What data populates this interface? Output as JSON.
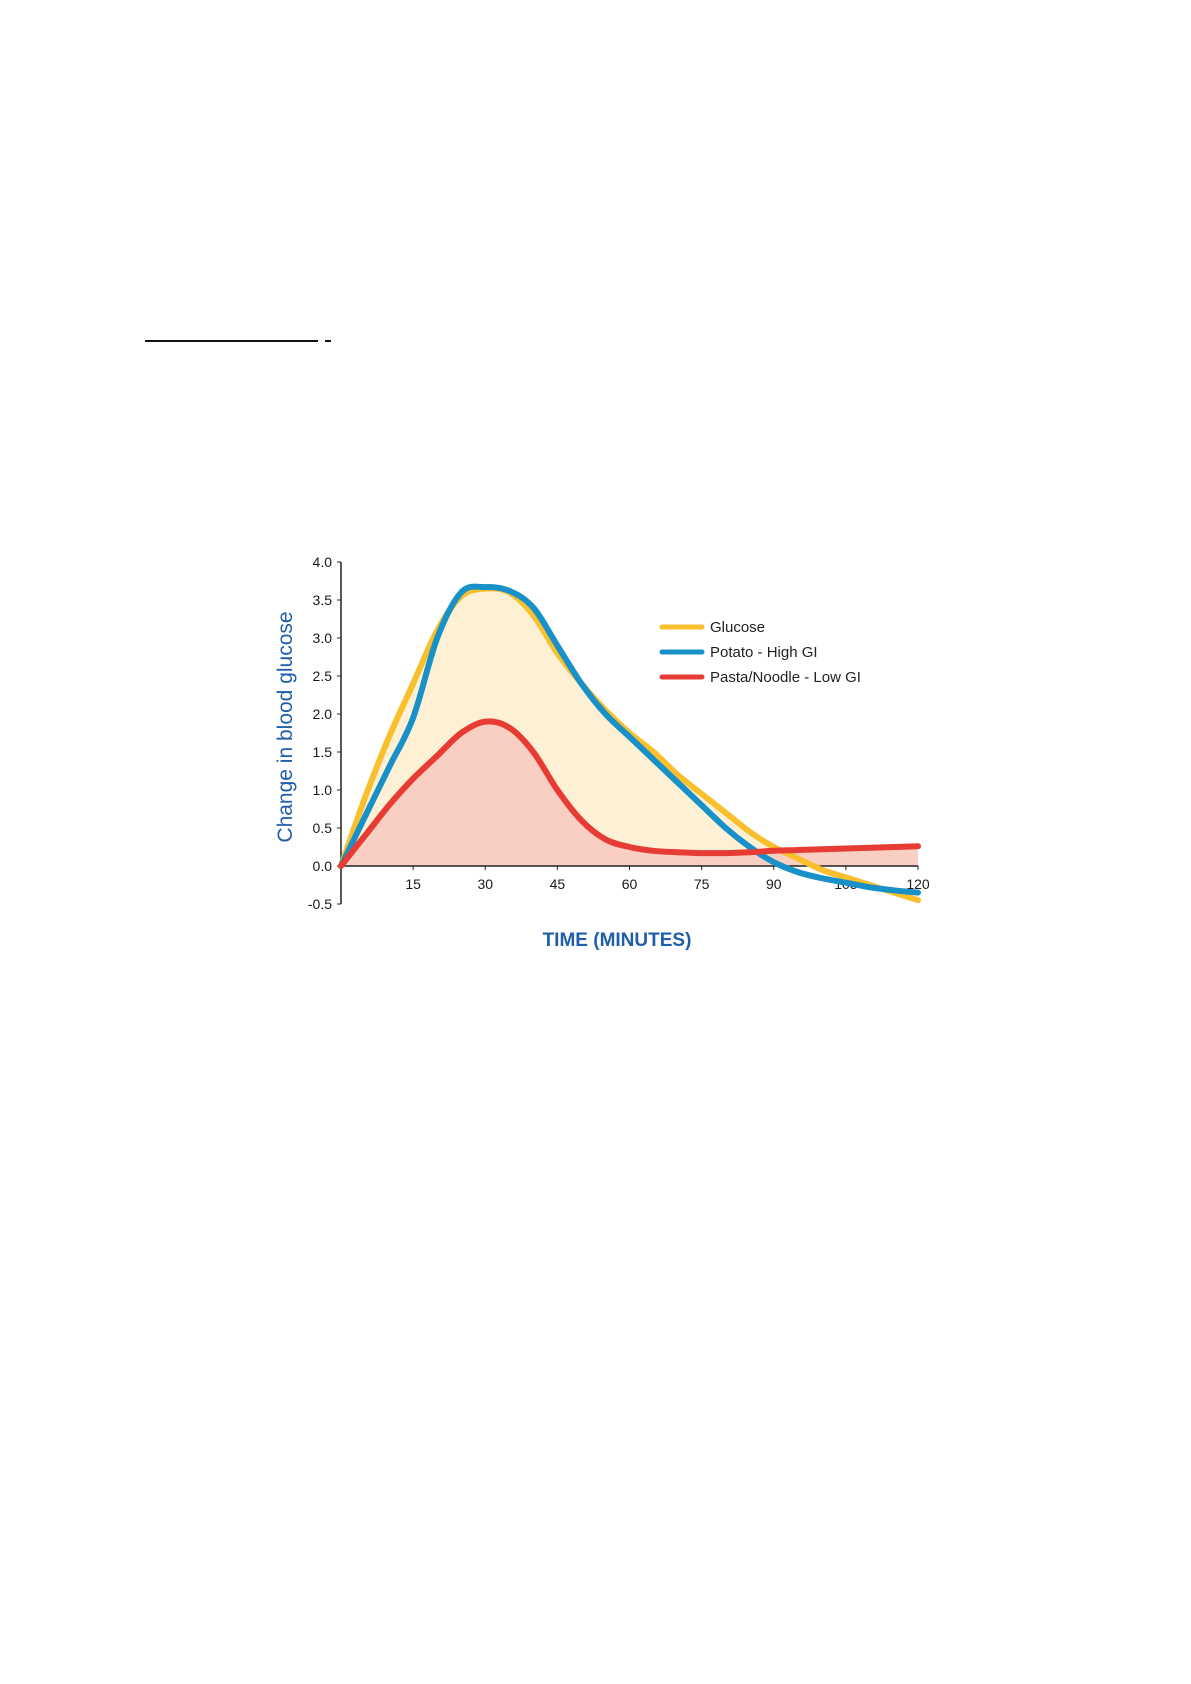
{
  "chart_data": {
    "type": "line",
    "xlabel": "TIME (MINUTES)",
    "ylabel": "Change in blood glucose",
    "xlim": [
      0,
      120
    ],
    "ylim": [
      -0.5,
      4.0
    ],
    "x_ticks": [
      "15",
      "30",
      "45",
      "60",
      "75",
      "90",
      "105",
      "120"
    ],
    "y_ticks": [
      "4.0",
      "3.5",
      "3.0",
      "2.5",
      "2.0",
      "1.5",
      "1.0",
      "0.5",
      "0.0",
      "-0.5"
    ],
    "grid": false,
    "legend_position": "top-right",
    "series": [
      {
        "name": "Glucose",
        "color": "#f9bf2c",
        "fill": "#fdf0d5",
        "x": [
          0,
          5,
          10,
          15,
          20,
          25,
          30,
          35,
          40,
          45,
          50,
          55,
          60,
          65,
          70,
          75,
          80,
          85,
          90,
          95,
          100,
          105,
          110,
          115,
          120
        ],
        "y": [
          0.0,
          0.9,
          1.7,
          2.4,
          3.1,
          3.55,
          3.65,
          3.6,
          3.3,
          2.8,
          2.4,
          2.05,
          1.75,
          1.5,
          1.2,
          0.95,
          0.7,
          0.45,
          0.25,
          0.1,
          -0.05,
          -0.15,
          -0.25,
          -0.35,
          -0.45
        ]
      },
      {
        "name": "Potato - High GI",
        "color": "#1890c8",
        "x": [
          0,
          5,
          10,
          15,
          20,
          25,
          30,
          35,
          40,
          45,
          50,
          55,
          60,
          65,
          70,
          75,
          80,
          85,
          90,
          95,
          100,
          105,
          110,
          115,
          120
        ],
        "y": [
          0.0,
          0.65,
          1.3,
          1.95,
          3.0,
          3.6,
          3.67,
          3.62,
          3.4,
          2.9,
          2.4,
          2.0,
          1.7,
          1.4,
          1.1,
          0.8,
          0.5,
          0.25,
          0.05,
          -0.08,
          -0.16,
          -0.22,
          -0.28,
          -0.32,
          -0.35
        ]
      },
      {
        "name": "Pasta/Noodle - Low GI",
        "color": "#e73c34",
        "fill": "#f9cfc3",
        "x": [
          0,
          5,
          10,
          15,
          20,
          25,
          30,
          35,
          40,
          45,
          50,
          55,
          60,
          65,
          70,
          75,
          80,
          85,
          90,
          95,
          100,
          105,
          110,
          115,
          120
        ],
        "y": [
          0.0,
          0.4,
          0.8,
          1.15,
          1.45,
          1.75,
          1.9,
          1.82,
          1.5,
          1.0,
          0.6,
          0.35,
          0.25,
          0.2,
          0.18,
          0.17,
          0.17,
          0.18,
          0.2,
          0.21,
          0.22,
          0.23,
          0.24,
          0.25,
          0.26
        ]
      }
    ]
  }
}
